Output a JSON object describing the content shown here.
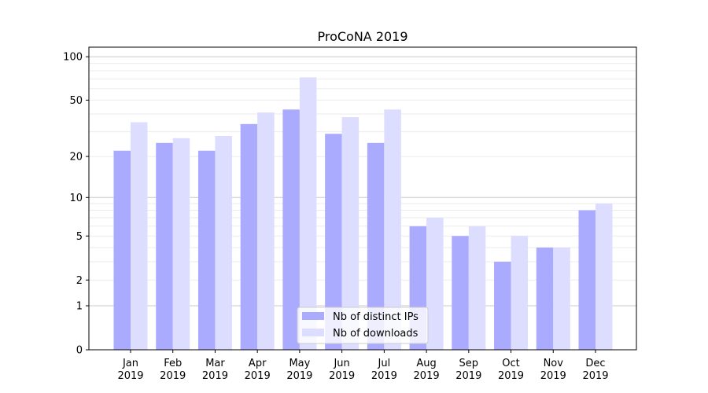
{
  "chart_data": {
    "type": "bar",
    "title": "ProCoNA 2019",
    "xlabel": "",
    "ylabel": "",
    "yscale": "log(1+y)",
    "ylim": [
      0,
      110
    ],
    "yticks": [
      0,
      1,
      2,
      5,
      10,
      20,
      50,
      100
    ],
    "grid": true,
    "legend_position": "bottom-center",
    "categories": [
      "Jan\n2019",
      "Feb\n2019",
      "Mar\n2019",
      "Apr\n2019",
      "May\n2019",
      "Jun\n2019",
      "Jul\n2019",
      "Aug\n2019",
      "Sep\n2019",
      "Oct\n2019",
      "Nov\n2019",
      "Dec\n2019"
    ],
    "series": [
      {
        "name": "Nb of distinct IPs",
        "color": "#aaaaff",
        "values": [
          22,
          25,
          22,
          34,
          43,
          29,
          25,
          6,
          5,
          3,
          4,
          8
        ]
      },
      {
        "name": "Nb of downloads",
        "color": "#ddddff",
        "values": [
          35,
          27,
          28,
          41,
          72,
          38,
          43,
          7,
          6,
          5,
          4,
          9
        ]
      }
    ]
  }
}
